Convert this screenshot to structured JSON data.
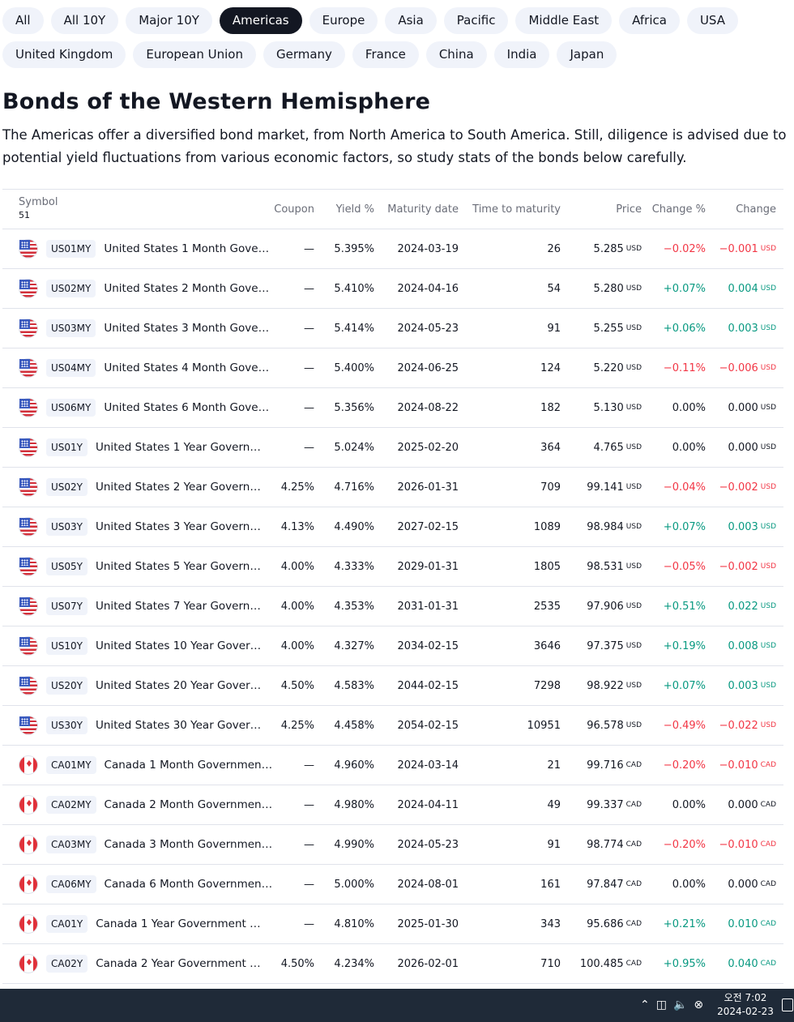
{
  "filters": {
    "row1": [
      "All",
      "All 10Y",
      "Major 10Y",
      "Americas",
      "Europe",
      "Asia",
      "Pacific",
      "Middle East",
      "Africa",
      "USA"
    ],
    "row2": [
      "United Kingdom",
      "European Union",
      "Germany",
      "France",
      "China",
      "India",
      "Japan"
    ],
    "active": "Americas"
  },
  "title": "Bonds of the Western Hemisphere",
  "description": "The Americas offer a diversified bond market, from North America to South America. Still, diligence is advised due to potential yield fluctuations from various economic factors, so study stats of the bonds below carefully.",
  "table": {
    "headers": {
      "symbol": "Symbol",
      "count": "51",
      "coupon": "Coupon",
      "yield": "Yield %",
      "maturity": "Maturity date",
      "ttm": "Time to maturity",
      "price": "Price",
      "change_pct": "Change %",
      "change": "Change"
    },
    "rows": [
      {
        "flag": "us-flag-icon",
        "symbol": "US01MY",
        "desc": "United States 1 Month Gove…",
        "coupon": "—",
        "yield": "5.395%",
        "maturity": "2024-03-19",
        "ttm": "26",
        "price": "5.285",
        "currency": "USD",
        "change_pct": "−0.02%",
        "change": "−0.001",
        "trend": "neg"
      },
      {
        "flag": "us-flag-icon",
        "symbol": "US02MY",
        "desc": "United States 2 Month Gove…",
        "coupon": "—",
        "yield": "5.410%",
        "maturity": "2024-04-16",
        "ttm": "54",
        "price": "5.280",
        "currency": "USD",
        "change_pct": "+0.07%",
        "change": "0.004",
        "trend": "pos"
      },
      {
        "flag": "us-flag-icon",
        "symbol": "US03MY",
        "desc": "United States 3 Month Gove…",
        "coupon": "—",
        "yield": "5.414%",
        "maturity": "2024-05-23",
        "ttm": "91",
        "price": "5.255",
        "currency": "USD",
        "change_pct": "+0.06%",
        "change": "0.003",
        "trend": "pos"
      },
      {
        "flag": "us-flag-icon",
        "symbol": "US04MY",
        "desc": "United States 4 Month Gove…",
        "coupon": "—",
        "yield": "5.400%",
        "maturity": "2024-06-25",
        "ttm": "124",
        "price": "5.220",
        "currency": "USD",
        "change_pct": "−0.11%",
        "change": "−0.006",
        "trend": "neg"
      },
      {
        "flag": "us-flag-icon",
        "symbol": "US06MY",
        "desc": "United States 6 Month Gove…",
        "coupon": "—",
        "yield": "5.356%",
        "maturity": "2024-08-22",
        "ttm": "182",
        "price": "5.130",
        "currency": "USD",
        "change_pct": "0.00%",
        "change": "0.000",
        "trend": "neu"
      },
      {
        "flag": "us-flag-icon",
        "symbol": "US01Y",
        "desc": "United States 1 Year Govern…",
        "coupon": "—",
        "yield": "5.024%",
        "maturity": "2025-02-20",
        "ttm": "364",
        "price": "4.765",
        "currency": "USD",
        "change_pct": "0.00%",
        "change": "0.000",
        "trend": "neu"
      },
      {
        "flag": "us-flag-icon",
        "symbol": "US02Y",
        "desc": "United States 2 Year Govern…",
        "coupon": "4.25%",
        "yield": "4.716%",
        "maturity": "2026-01-31",
        "ttm": "709",
        "price": "99.141",
        "currency": "USD",
        "change_pct": "−0.04%",
        "change": "−0.002",
        "trend": "neg"
      },
      {
        "flag": "us-flag-icon",
        "symbol": "US03Y",
        "desc": "United States 3 Year Govern…",
        "coupon": "4.13%",
        "yield": "4.490%",
        "maturity": "2027-02-15",
        "ttm": "1089",
        "price": "98.984",
        "currency": "USD",
        "change_pct": "+0.07%",
        "change": "0.003",
        "trend": "pos"
      },
      {
        "flag": "us-flag-icon",
        "symbol": "US05Y",
        "desc": "United States 5 Year Govern…",
        "coupon": "4.00%",
        "yield": "4.333%",
        "maturity": "2029-01-31",
        "ttm": "1805",
        "price": "98.531",
        "currency": "USD",
        "change_pct": "−0.05%",
        "change": "−0.002",
        "trend": "neg"
      },
      {
        "flag": "us-flag-icon",
        "symbol": "US07Y",
        "desc": "United States 7 Year Govern…",
        "coupon": "4.00%",
        "yield": "4.353%",
        "maturity": "2031-01-31",
        "ttm": "2535",
        "price": "97.906",
        "currency": "USD",
        "change_pct": "+0.51%",
        "change": "0.022",
        "trend": "pos"
      },
      {
        "flag": "us-flag-icon",
        "symbol": "US10Y",
        "desc": "United States 10 Year Gover…",
        "coupon": "4.00%",
        "yield": "4.327%",
        "maturity": "2034-02-15",
        "ttm": "3646",
        "price": "97.375",
        "currency": "USD",
        "change_pct": "+0.19%",
        "change": "0.008",
        "trend": "pos"
      },
      {
        "flag": "us-flag-icon",
        "symbol": "US20Y",
        "desc": "United States 20 Year Gover…",
        "coupon": "4.50%",
        "yield": "4.583%",
        "maturity": "2044-02-15",
        "ttm": "7298",
        "price": "98.922",
        "currency": "USD",
        "change_pct": "+0.07%",
        "change": "0.003",
        "trend": "pos"
      },
      {
        "flag": "us-flag-icon",
        "symbol": "US30Y",
        "desc": "United States 30 Year Gover…",
        "coupon": "4.25%",
        "yield": "4.458%",
        "maturity": "2054-02-15",
        "ttm": "10951",
        "price": "96.578",
        "currency": "USD",
        "change_pct": "−0.49%",
        "change": "−0.022",
        "trend": "neg"
      },
      {
        "flag": "canada-flag-icon",
        "symbol": "CA01MY",
        "desc": "Canada 1 Month Governmen…",
        "coupon": "—",
        "yield": "4.960%",
        "maturity": "2024-03-14",
        "ttm": "21",
        "price": "99.716",
        "currency": "CAD",
        "change_pct": "−0.20%",
        "change": "−0.010",
        "trend": "neg"
      },
      {
        "flag": "canada-flag-icon",
        "symbol": "CA02MY",
        "desc": "Canada 2 Month Governmen…",
        "coupon": "—",
        "yield": "4.980%",
        "maturity": "2024-04-11",
        "ttm": "49",
        "price": "99.337",
        "currency": "CAD",
        "change_pct": "0.00%",
        "change": "0.000",
        "trend": "neu"
      },
      {
        "flag": "canada-flag-icon",
        "symbol": "CA03MY",
        "desc": "Canada 3 Month Governmen…",
        "coupon": "—",
        "yield": "4.990%",
        "maturity": "2024-05-23",
        "ttm": "91",
        "price": "98.774",
        "currency": "CAD",
        "change_pct": "−0.20%",
        "change": "−0.010",
        "trend": "neg"
      },
      {
        "flag": "canada-flag-icon",
        "symbol": "CA06MY",
        "desc": "Canada 6 Month Governmen…",
        "coupon": "—",
        "yield": "5.000%",
        "maturity": "2024-08-01",
        "ttm": "161",
        "price": "97.847",
        "currency": "CAD",
        "change_pct": "0.00%",
        "change": "0.000",
        "trend": "neu"
      },
      {
        "flag": "canada-flag-icon",
        "symbol": "CA01Y",
        "desc": "Canada 1 Year Government …",
        "coupon": "—",
        "yield": "4.810%",
        "maturity": "2025-01-30",
        "ttm": "343",
        "price": "95.686",
        "currency": "CAD",
        "change_pct": "+0.21%",
        "change": "0.010",
        "trend": "pos"
      },
      {
        "flag": "canada-flag-icon",
        "symbol": "CA02Y",
        "desc": "Canada 2 Year Government …",
        "coupon": "4.50%",
        "yield": "4.234%",
        "maturity": "2026-02-01",
        "ttm": "710",
        "price": "100.485",
        "currency": "CAD",
        "change_pct": "+0.95%",
        "change": "0.040",
        "trend": "pos"
      }
    ]
  },
  "taskbar": {
    "time": "오전 7:02",
    "date": "2024-02-23",
    "icons": [
      "chevron-up-icon",
      "network-icon",
      "volume-icon",
      "mic-off-icon",
      "notification-icon"
    ]
  },
  "colors": {
    "negative": "#f23645",
    "positive": "#089981",
    "active_pill": "#131722",
    "pill": "#f0f3fa"
  }
}
